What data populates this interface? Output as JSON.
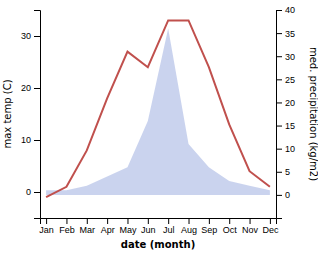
{
  "chart_data": {
    "type": "line",
    "categories": [
      "Jan",
      "Feb",
      "Mar",
      "Apr",
      "May",
      "Jun",
      "Jul",
      "Aug",
      "Sep",
      "Oct",
      "Nov",
      "Dec"
    ],
    "xlabel": "date (month)",
    "ylabel": "max temp (C)",
    "y2label": "med. precipitation (kg/m2)",
    "ylim": [
      -5,
      35
    ],
    "yticks": [
      0,
      10,
      20,
      30
    ],
    "y2lim": [
      -5,
      40
    ],
    "y2ticks": [
      0,
      5,
      10,
      15,
      20,
      25,
      30,
      35,
      40
    ],
    "series": [
      {
        "type": "area",
        "axis": "y2",
        "color": "#b8c4e8",
        "values": [
          1,
          1,
          2,
          4,
          6,
          16,
          36,
          11,
          6,
          3,
          2,
          1
        ]
      },
      {
        "type": "line",
        "color": "#c0504d",
        "values": [
          -1,
          1,
          8,
          18,
          27,
          24,
          33,
          33,
          24,
          13,
          4,
          1
        ]
      }
    ]
  }
}
